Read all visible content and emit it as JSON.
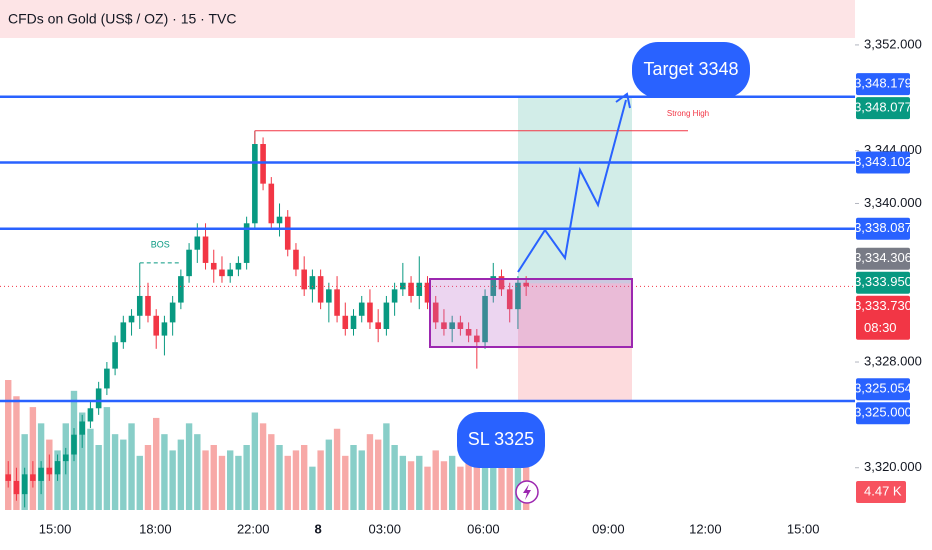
{
  "chart_data": {
    "type": "candlestick",
    "title": "CFDs on Gold (US$ / OZ) · 15 · TVC",
    "open": [
      3319.5,
      3319,
      3318,
      3319.5,
      3319,
      3320,
      3319.5,
      3320.5,
      3321,
      3322.5,
      3323.5,
      3324.5,
      3326,
      3327.5,
      3329.5,
      3331,
      3331.5,
      3333,
      3331.5,
      3330,
      3331,
      3332.5,
      3334.5,
      3336.5,
      3337.5,
      3335.5,
      3335,
      3334.5,
      3335,
      3335.5,
      3338.5,
      3344.5,
      3341.5,
      3338.5,
      3339,
      3336.5,
      3335,
      3333.5,
      3334.5,
      3332.5,
      3333.5,
      3331.5,
      3330.5,
      3331.5,
      3332.5,
      3331,
      3330.5,
      3332.5,
      3333.5,
      3334,
      3333,
      3334,
      3332.5,
      3331,
      3330.5,
      3331,
      3330.5,
      3330,
      3329.5,
      3333,
      3334.5,
      3333.5,
      3332,
      3334
    ],
    "high": [
      3320.5,
      3320,
      3320,
      3320.5,
      3320.5,
      3321,
      3321,
      3321.5,
      3323,
      3324,
      3325,
      3326.5,
      3328,
      3330,
      3331.5,
      3332,
      3335.5,
      3334,
      3332,
      3331.5,
      3333,
      3335,
      3337,
      3338.5,
      3338.5,
      3336.5,
      3336,
      3335.5,
      3336,
      3339,
      3345.5,
      3345,
      3342,
      3340,
      3339.5,
      3337,
      3336,
      3335,
      3335,
      3334,
      3334.5,
      3332.5,
      3332,
      3333,
      3333.5,
      3332,
      3333,
      3334,
      3335.5,
      3334.5,
      3336,
      3334.5,
      3333,
      3332,
      3331.5,
      3331.5,
      3331,
      3330.5,
      3333.5,
      3335.5,
      3335,
      3334,
      3334.5,
      3334.5
    ],
    "low": [
      3318.5,
      3317.5,
      3317,
      3318.5,
      3318,
      3319,
      3319,
      3319.5,
      3320.5,
      3321.5,
      3323,
      3324,
      3325.5,
      3327,
      3329,
      3330,
      3330.5,
      3331,
      3329,
      3328.5,
      3330,
      3332,
      3334,
      3335.5,
      3335,
      3334,
      3334,
      3334,
      3334.5,
      3335,
      3338,
      3341,
      3338,
      3337.5,
      3336,
      3334.5,
      3333,
      3332.5,
      3332,
      3331,
      3331,
      3330,
      3330,
      3331,
      3330.5,
      3329.5,
      3330,
      3331.5,
      3333,
      3332.5,
      3332,
      3332,
      3330.5,
      3330,
      3329.5,
      3330,
      3329.5,
      3327.5,
      3329,
      3332.5,
      3333,
      3331,
      3330.5,
      3333
    ],
    "close": [
      3319,
      3318,
      3319.5,
      3319,
      3320,
      3319.5,
      3320.5,
      3321,
      3322.5,
      3323.5,
      3324.5,
      3326,
      3327.5,
      3329.5,
      3331,
      3331.5,
      3333,
      3331.5,
      3330,
      3331,
      3332.5,
      3334.5,
      3336.5,
      3337.5,
      3335.5,
      3335,
      3334.5,
      3335,
      3335.5,
      3338.5,
      3344.5,
      3341.5,
      3338.5,
      3339,
      3336.5,
      3335,
      3333.5,
      3334.5,
      3332.5,
      3333.5,
      3331.5,
      3330.5,
      3331.5,
      3332.5,
      3331,
      3330.5,
      3332.5,
      3333.5,
      3334,
      3333,
      3334,
      3332.5,
      3331,
      3330.5,
      3331,
      3330.5,
      3330,
      3329.5,
      3333,
      3334.5,
      3333.5,
      3332,
      3334,
      3333.73
    ],
    "volume": [
      12,
      10.5,
      7,
      9.5,
      8,
      6.5,
      5.5,
      8,
      11,
      9,
      7.5,
      6,
      9.5,
      7,
      6.5,
      8,
      5,
      6,
      8.5,
      7,
      5.5,
      6.5,
      8,
      7,
      5.5,
      6,
      5,
      5.5,
      5,
      6,
      9,
      8,
      7,
      6,
      5,
      5.5,
      6,
      4,
      5.5,
      6.5,
      7.5,
      5,
      6,
      5.5,
      7,
      6.5,
      8,
      6,
      5,
      4.5,
      5,
      4,
      5.5,
      4.5,
      5,
      4,
      4.5,
      5.5,
      7,
      6,
      5,
      5.5,
      6,
      4.47
    ],
    "volume_label": "4.47 K",
    "xlim": [
      -1,
      103
    ],
    "ylim": [
      3316.8,
      3355.4
    ],
    "vlim": [
      0,
      12
    ],
    "xticks": [
      {
        "value": 5.7,
        "label": "15:00"
      },
      {
        "value": 17.9,
        "label": "18:00"
      },
      {
        "value": 29.8,
        "label": "22:00"
      },
      {
        "value": 37.7,
        "label": "8"
      },
      {
        "value": 45.8,
        "label": "03:00"
      },
      {
        "value": 57.8,
        "label": "06:00"
      },
      {
        "value": 73,
        "label": "09:00"
      },
      {
        "value": 84.8,
        "label": "12:00"
      },
      {
        "value": 96.7,
        "label": "15:00"
      }
    ],
    "yticks": [
      {
        "value": 3352,
        "label": "3,352.000"
      },
      {
        "value": 3344,
        "label": "3,344.000"
      },
      {
        "value": 3340,
        "label": "3,340.000"
      },
      {
        "value": 3328,
        "label": "3,328.000"
      },
      {
        "value": 3320,
        "label": "3,320.000"
      }
    ],
    "price_tags": [
      {
        "value": 3348.179,
        "label": "3,348.179",
        "color": "#2962ff"
      },
      {
        "value": 3348.077,
        "label": "3,348.077",
        "color": "#089981",
        "line": true
      },
      {
        "value": 3343.102,
        "label": "3,343.102",
        "color": "#2962ff",
        "line": true
      },
      {
        "value": 3338.087,
        "label": "3,338.087",
        "color": "#2962ff",
        "line": true
      },
      {
        "value": 3334.306,
        "label": "3,334.306",
        "color": "#787b86"
      },
      {
        "value": 3333.95,
        "label": "3,333.950",
        "color": "#089981"
      },
      {
        "value": 3333.73,
        "label": "3,333.730",
        "color": "#f23645",
        "sub": "08:30"
      },
      {
        "value": 3325.054,
        "label": "3,325.054",
        "color": "#2962ff",
        "line": true
      },
      {
        "value": 3325.0,
        "label": "3,325.000",
        "color": "#2962ff"
      }
    ],
    "annotations": {
      "target": "Target 3348",
      "sl": "SL 3325",
      "strong_high": "Strong High",
      "bos": "BOS"
    }
  }
}
